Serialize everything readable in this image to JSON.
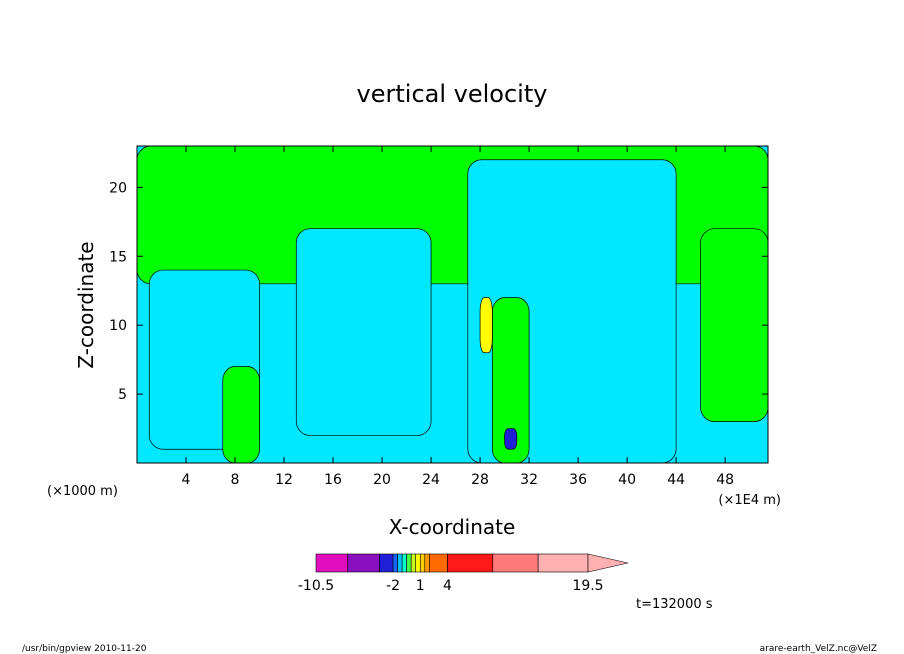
{
  "chart_data": {
    "type": "heatmap",
    "title": "vertical velocity",
    "xlabel": "X-coordinate",
    "ylabel": "Z-coordinate",
    "x_multiplier_left": "(×1000 m)",
    "x_multiplier_right": "(×1E4 m)",
    "xticks": [
      "4",
      "8",
      "12",
      "16",
      "20",
      "24",
      "28",
      "32",
      "36",
      "40",
      "44",
      "48"
    ],
    "xtick_values": [
      4,
      8,
      12,
      16,
      20,
      24,
      28,
      32,
      36,
      40,
      44,
      48
    ],
    "xlim": [
      0,
      51.5
    ],
    "yticks": [
      "5",
      "10",
      "15",
      "20"
    ],
    "ytick_values": [
      5,
      10,
      15,
      20
    ],
    "ylim": [
      0,
      23
    ],
    "time_label": "t=132000 s",
    "colorbar": {
      "levels": [
        -10.5,
        -7,
        -3.5,
        -2,
        -1.5,
        -1,
        -0.5,
        0,
        0.5,
        1,
        1.5,
        2,
        4,
        9,
        14,
        19.5
      ],
      "colors": [
        "#e10ebe",
        "#8a0fbf",
        "#1f1fd6",
        "#1566ff",
        "#00c0ff",
        "#00ffcc",
        "#44ff44",
        "#c8ff1e",
        "#ffff00",
        "#ffcf00",
        "#ff9a00",
        "#ff6a00",
        "#ff1a1a",
        "#ff7a7a",
        "#ffb0b0"
      ],
      "tick_labels": [
        {
          "value": -10.5,
          "text": "-10.5"
        },
        {
          "value": -2,
          "text": "-2"
        },
        {
          "value": 1,
          "text": "1"
        },
        {
          "value": 4,
          "text": "4"
        },
        {
          "value": 19.5,
          "text": "19.5"
        }
      ]
    },
    "field_colors": {
      "positive_weak": "#00ff00",
      "negative_weak": "#00e8ff",
      "strong_positive": "#ffff00",
      "strong_negative": "#1f1fd6"
    },
    "field_regions": [
      {
        "label": "positive",
        "x": [
          0,
          51.5
        ],
        "z": [
          13,
          23
        ]
      },
      {
        "label": "negative",
        "x": [
          1,
          10
        ],
        "z": [
          1,
          14
        ]
      },
      {
        "label": "negative",
        "x": [
          13,
          24
        ],
        "z": [
          2,
          17
        ]
      },
      {
        "label": "negative",
        "x": [
          27,
          44
        ],
        "z": [
          0,
          22
        ]
      },
      {
        "label": "positive",
        "x": [
          7,
          10
        ],
        "z": [
          0,
          7
        ]
      },
      {
        "label": "positive",
        "x": [
          29,
          32
        ],
        "z": [
          0,
          12
        ]
      },
      {
        "label": "positive",
        "x": [
          46,
          51.5
        ],
        "z": [
          3,
          17
        ]
      },
      {
        "label": "strong_positive",
        "x": [
          28,
          29
        ],
        "z": [
          8,
          12
        ]
      },
      {
        "label": "strong_negative",
        "x": [
          30,
          31
        ],
        "z": [
          1,
          2.5
        ]
      }
    ]
  },
  "footer": {
    "left": "/usr/bin/gpview  2010-11-20",
    "right": "arare-earth_VelZ.nc@VelZ"
  }
}
